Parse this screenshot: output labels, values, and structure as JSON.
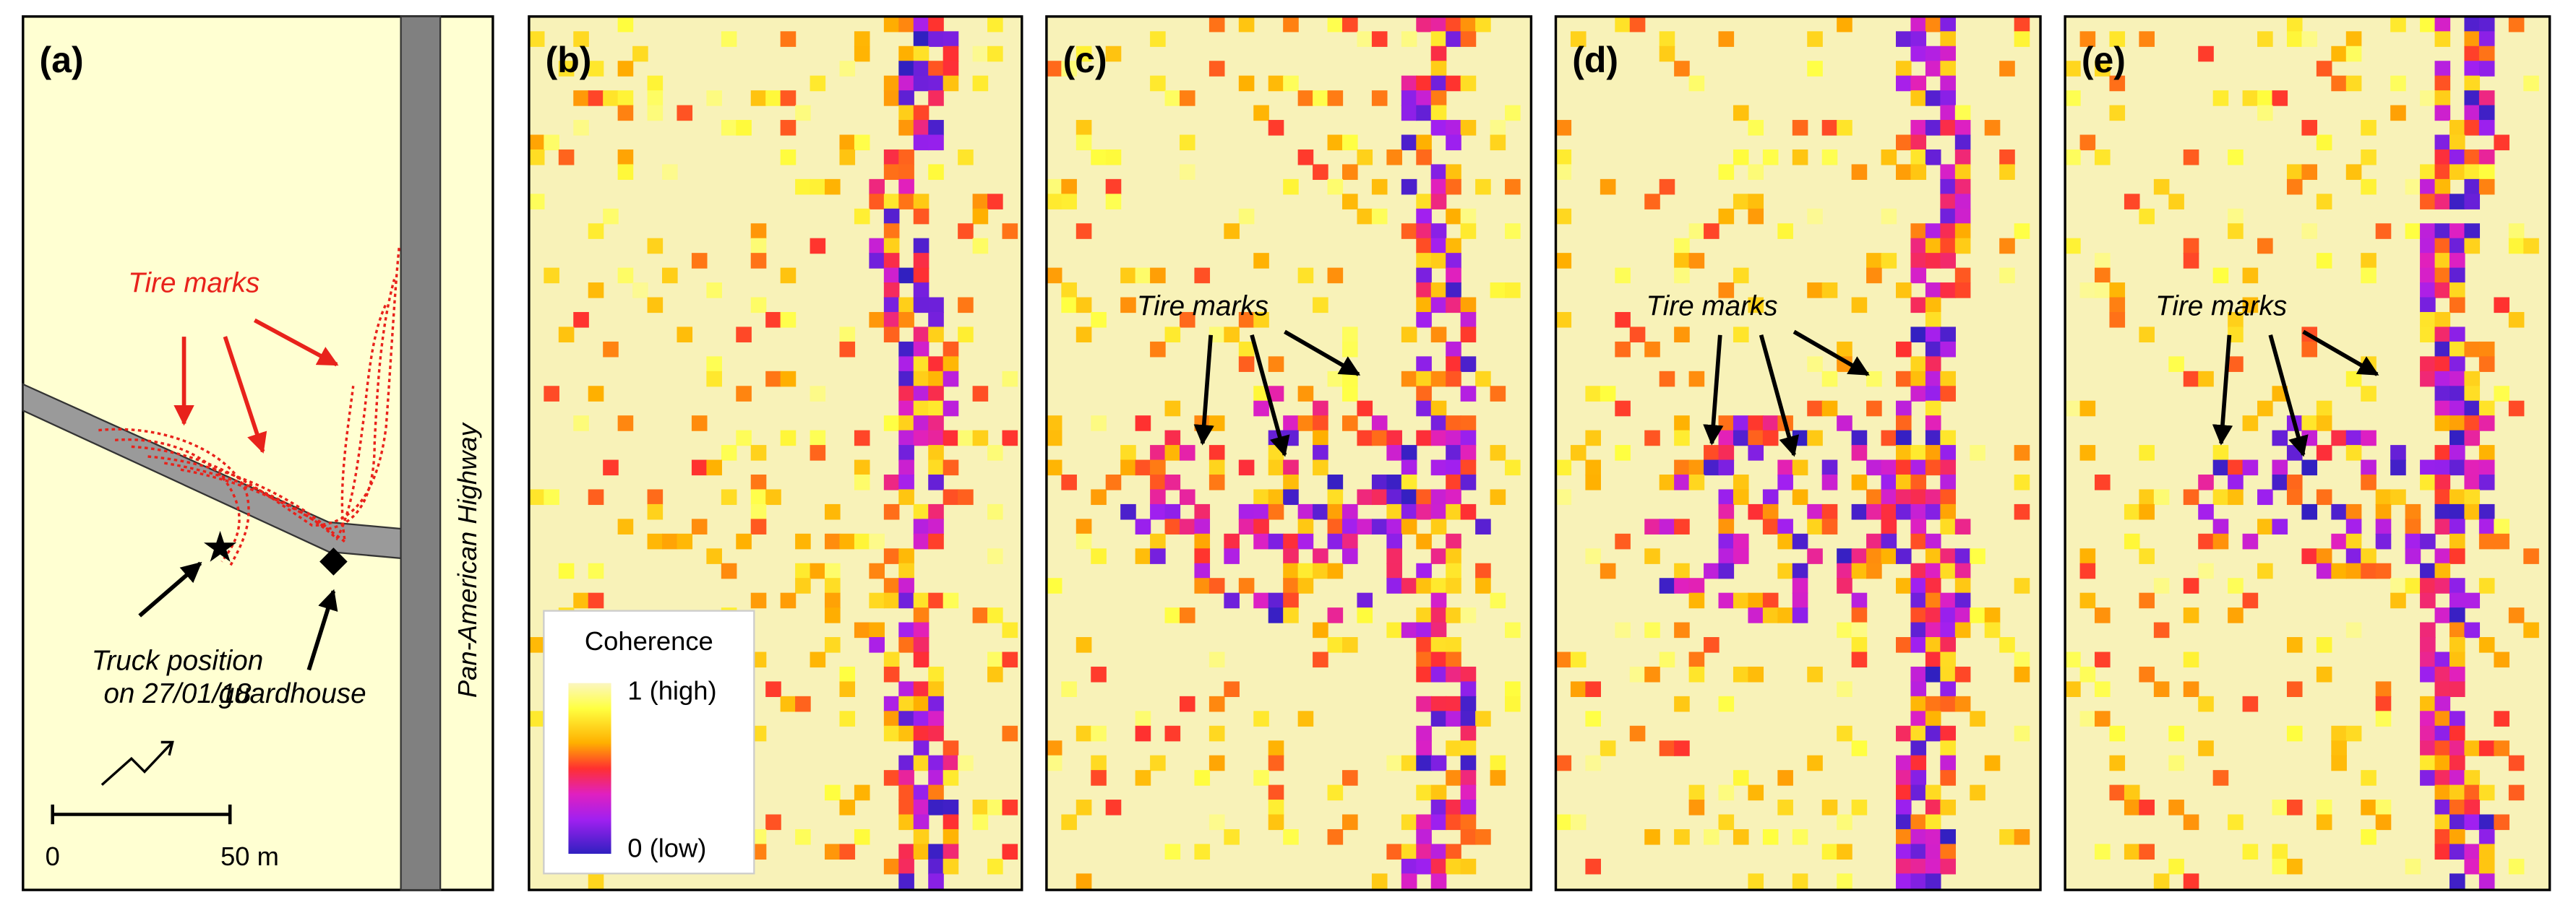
{
  "panels": {
    "a": {
      "label": "(a)",
      "tire_marks": "Tire marks",
      "highway": "Pan-American Highway",
      "truck": [
        "Truck position",
        "on 27/01/18"
      ],
      "guardhouse": "guardhouse",
      "scale": [
        "0",
        "50 m"
      ]
    },
    "b": {
      "label": "(b)"
    },
    "c": {
      "label": "(c)",
      "tire_marks": "Tire marks"
    },
    "d": {
      "label": "(d)",
      "tire_marks": "Tire marks"
    },
    "e": {
      "label": "(e)",
      "tire_marks": "Tire marks"
    }
  },
  "legend": {
    "title": "Coherence",
    "high": "1 (high)",
    "low": "0 (low)"
  }
}
